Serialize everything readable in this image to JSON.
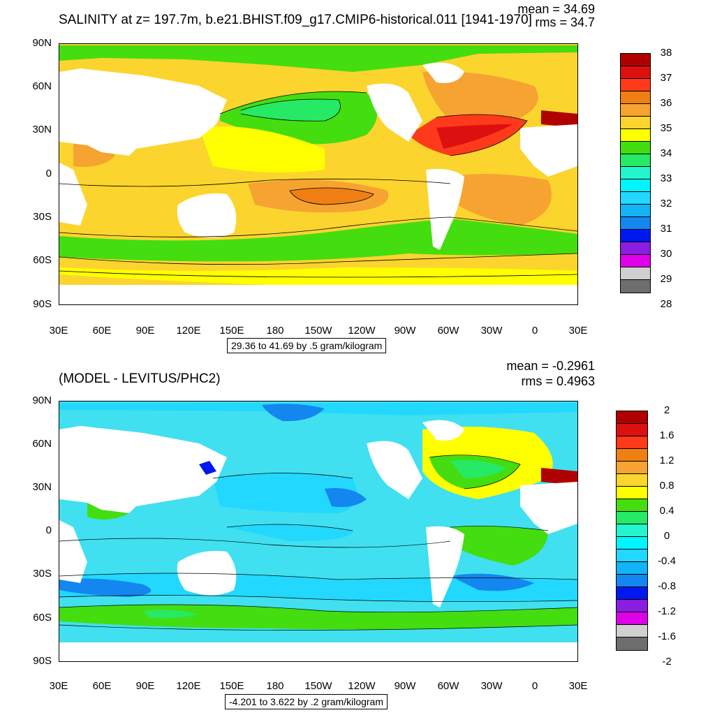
{
  "colors": {
    "land": "#ffffff",
    "contour": "#000000",
    "panel1_bg": "#fcd42e",
    "panel2_bg": "#40e0f0"
  },
  "x_ticks": [
    "30E",
    "60E",
    "90E",
    "120E",
    "150E",
    "180",
    "150W",
    "120W",
    "90W",
    "60W",
    "30W",
    "0",
    "30E"
  ],
  "y_ticks": [
    "90N",
    "60N",
    "30N",
    "0",
    "30S",
    "60S",
    "90S"
  ],
  "panels": [
    {
      "title": "SALINITY at z= 197.7m, b.e21.BHIST.f09_g17.CMIP6-historical.011 [1941-1970]",
      "mean": "mean = 34.69",
      "rms": "rms = 34.7",
      "range": "29.36 to 41.69 by .5 gram/kilogram",
      "colorbar_labels": [
        "38",
        "37",
        "36",
        "35",
        "34",
        "33",
        "32",
        "31",
        "30",
        "29",
        "28"
      ],
      "colorbar_colors": [
        "#b00000",
        "#dd1010",
        "#ff3a1a",
        "#f07f13",
        "#f6a332",
        "#fcd42e",
        "#ffff00",
        "#44dd10",
        "#26ea66",
        "#24f5cc",
        "#00f5ff",
        "#22d8ff",
        "#12b4f7",
        "#1486f0",
        "#0018f0",
        "#8a1de0",
        "#dd00e8",
        "#d0d0d0",
        "#6e6e6e"
      ]
    },
    {
      "title": "(MODEL - LEVITUS/PHC2)",
      "mean": "mean = -0.2961",
      "rms": "rms = 0.4963",
      "range": "-4.201 to 3.622 by .2 gram/kilogram",
      "colorbar_labels": [
        "2",
        "1.6",
        "1.2",
        "0.8",
        "0.4",
        "0",
        "-0.4",
        "-0.8",
        "-1.2",
        "-1.6",
        "-2"
      ],
      "colorbar_colors": [
        "#b00000",
        "#dd1010",
        "#ff3a1a",
        "#f07f13",
        "#f6a332",
        "#fcd42e",
        "#ffff00",
        "#44dd10",
        "#26ea66",
        "#24f5cc",
        "#00f5ff",
        "#22d8ff",
        "#12b4f7",
        "#1486f0",
        "#0018f0",
        "#8a1de0",
        "#dd00e8",
        "#d0d0d0",
        "#6e6e6e"
      ]
    }
  ]
}
